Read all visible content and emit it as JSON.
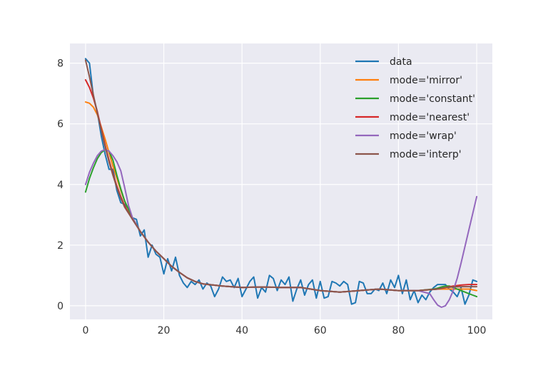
{
  "chart_data": {
    "type": "line",
    "title": "",
    "xlabel": "",
    "ylabel": "",
    "xlim": [
      -4,
      104
    ],
    "ylim": [
      -0.45,
      8.65
    ],
    "xticks": [
      0,
      20,
      40,
      60,
      80,
      100
    ],
    "yticks": [
      0,
      2,
      4,
      6,
      8
    ],
    "grid": true,
    "legend_position": "top-right",
    "series": [
      {
        "name": "data",
        "color": "#1f77b4",
        "x": [
          0,
          1,
          2,
          3,
          4,
          5,
          6,
          7,
          8,
          9,
          10,
          11,
          12,
          13,
          14,
          15,
          16,
          17,
          18,
          19,
          20,
          21,
          22,
          23,
          24,
          25,
          26,
          27,
          28,
          29,
          30,
          31,
          32,
          33,
          34,
          35,
          36,
          37,
          38,
          39,
          40,
          41,
          42,
          43,
          44,
          45,
          46,
          47,
          48,
          49,
          50,
          51,
          52,
          53,
          54,
          55,
          56,
          57,
          58,
          59,
          60,
          61,
          62,
          63,
          64,
          65,
          66,
          67,
          68,
          69,
          70,
          71,
          72,
          73,
          74,
          75,
          76,
          77,
          78,
          79,
          80,
          81,
          82,
          83,
          84,
          85,
          86,
          87,
          88,
          89,
          90,
          91,
          92,
          93,
          94,
          95,
          96,
          97,
          98,
          99,
          100
        ],
        "y": [
          8.15,
          8.0,
          6.9,
          6.4,
          5.6,
          5.0,
          4.5,
          4.5,
          3.8,
          3.4,
          3.35,
          3.2,
          2.9,
          2.85,
          2.3,
          2.5,
          1.6,
          2.0,
          1.7,
          1.6,
          1.05,
          1.55,
          1.15,
          1.6,
          1.0,
          0.75,
          0.6,
          0.8,
          0.7,
          0.85,
          0.55,
          0.75,
          0.65,
          0.3,
          0.55,
          0.95,
          0.8,
          0.85,
          0.6,
          0.9,
          0.3,
          0.55,
          0.8,
          0.95,
          0.25,
          0.6,
          0.45,
          1.0,
          0.9,
          0.5,
          0.85,
          0.7,
          0.95,
          0.15,
          0.55,
          0.85,
          0.35,
          0.7,
          0.85,
          0.25,
          0.8,
          0.25,
          0.3,
          0.8,
          0.75,
          0.65,
          0.8,
          0.7,
          0.05,
          0.1,
          0.8,
          0.75,
          0.4,
          0.4,
          0.55,
          0.5,
          0.75,
          0.4,
          0.85,
          0.6,
          1.0,
          0.4,
          0.85,
          0.2,
          0.5,
          0.1,
          0.35,
          0.2,
          0.45,
          0.6,
          0.7,
          0.7,
          0.7,
          0.55,
          0.45,
          0.3,
          0.6,
          0.05,
          0.35,
          0.85,
          0.8
        ]
      },
      {
        "name": "mode='mirror'",
        "color": "#ff7f0e",
        "x": [
          0,
          1,
          2,
          3,
          4,
          5,
          6,
          7,
          8,
          9,
          10,
          12,
          14,
          16,
          18,
          20,
          22,
          24,
          26,
          28,
          30,
          35,
          40,
          45,
          50,
          55,
          60,
          65,
          70,
          75,
          80,
          85,
          90,
          92,
          94,
          96,
          98,
          100
        ],
        "y": [
          6.72,
          6.68,
          6.55,
          6.3,
          5.9,
          5.5,
          5.05,
          4.6,
          4.2,
          3.8,
          3.45,
          2.9,
          2.45,
          2.1,
          1.8,
          1.55,
          1.3,
          1.1,
          0.92,
          0.8,
          0.72,
          0.65,
          0.6,
          0.62,
          0.6,
          0.6,
          0.5,
          0.45,
          0.5,
          0.55,
          0.5,
          0.5,
          0.55,
          0.55,
          0.55,
          0.55,
          0.55,
          0.5
        ]
      },
      {
        "name": "mode='constant'",
        "color": "#2ca02c",
        "x": [
          0,
          1,
          2,
          3,
          4,
          5,
          6,
          7,
          8,
          9,
          10,
          12,
          14,
          16,
          18,
          20,
          22,
          24,
          26,
          28,
          30,
          35,
          40,
          45,
          50,
          55,
          60,
          65,
          70,
          75,
          80,
          85,
          89,
          90,
          91,
          92,
          93,
          94,
          95,
          96,
          97,
          98,
          99,
          100
        ],
        "y": [
          3.75,
          4.2,
          4.55,
          4.85,
          5.05,
          5.15,
          5.1,
          4.8,
          4.3,
          3.85,
          3.45,
          2.9,
          2.45,
          2.1,
          1.8,
          1.55,
          1.3,
          1.1,
          0.92,
          0.8,
          0.72,
          0.65,
          0.6,
          0.62,
          0.6,
          0.6,
          0.5,
          0.45,
          0.5,
          0.55,
          0.5,
          0.5,
          0.55,
          0.58,
          0.62,
          0.65,
          0.65,
          0.6,
          0.55,
          0.5,
          0.45,
          0.4,
          0.35,
          0.3
        ]
      },
      {
        "name": "mode='nearest'",
        "color": "#d62728",
        "x": [
          0,
          1,
          2,
          3,
          4,
          5,
          6,
          7,
          8,
          9,
          10,
          12,
          14,
          16,
          18,
          20,
          22,
          24,
          26,
          28,
          30,
          35,
          40,
          45,
          50,
          55,
          60,
          65,
          70,
          75,
          80,
          85,
          90,
          92,
          94,
          96,
          98,
          100
        ],
        "y": [
          7.45,
          7.2,
          6.85,
          6.4,
          5.85,
          5.3,
          4.8,
          4.35,
          3.95,
          3.6,
          3.3,
          2.85,
          2.45,
          2.1,
          1.8,
          1.55,
          1.3,
          1.1,
          0.92,
          0.8,
          0.72,
          0.65,
          0.6,
          0.62,
          0.6,
          0.6,
          0.5,
          0.45,
          0.5,
          0.55,
          0.5,
          0.5,
          0.55,
          0.6,
          0.65,
          0.68,
          0.7,
          0.7
        ]
      },
      {
        "name": "mode='wrap'",
        "color": "#9467bd",
        "x": [
          0,
          1,
          2,
          3,
          4,
          5,
          6,
          7,
          8,
          9,
          10,
          11,
          12,
          14,
          16,
          18,
          20,
          22,
          24,
          26,
          28,
          30,
          35,
          40,
          45,
          50,
          55,
          60,
          65,
          70,
          75,
          80,
          85,
          88,
          89,
          90,
          91,
          92,
          93,
          94,
          95,
          96,
          97,
          98,
          99,
          100
        ],
        "y": [
          4.0,
          4.4,
          4.7,
          4.95,
          5.1,
          5.15,
          5.1,
          4.95,
          4.75,
          4.45,
          3.9,
          3.3,
          2.9,
          2.45,
          2.1,
          1.8,
          1.55,
          1.3,
          1.1,
          0.92,
          0.8,
          0.72,
          0.65,
          0.6,
          0.62,
          0.6,
          0.6,
          0.5,
          0.45,
          0.5,
          0.55,
          0.5,
          0.5,
          0.4,
          0.2,
          0.02,
          -0.05,
          0.0,
          0.2,
          0.5,
          0.9,
          1.4,
          1.95,
          2.5,
          3.05,
          3.6
        ]
      },
      {
        "name": "mode='interp'",
        "color": "#8c564b",
        "x": [
          0,
          1,
          2,
          3,
          4,
          5,
          6,
          7,
          8,
          9,
          10,
          12,
          14,
          16,
          18,
          20,
          22,
          24,
          26,
          28,
          30,
          35,
          40,
          45,
          50,
          55,
          60,
          65,
          70,
          75,
          80,
          85,
          90,
          92,
          94,
          96,
          98,
          100
        ],
        "y": [
          8.1,
          7.55,
          6.95,
          6.35,
          5.8,
          5.25,
          4.75,
          4.3,
          3.9,
          3.55,
          3.25,
          2.85,
          2.45,
          2.1,
          1.8,
          1.55,
          1.3,
          1.1,
          0.92,
          0.8,
          0.72,
          0.65,
          0.6,
          0.62,
          0.6,
          0.6,
          0.5,
          0.45,
          0.5,
          0.55,
          0.5,
          0.5,
          0.55,
          0.6,
          0.62,
          0.63,
          0.63,
          0.63
        ]
      }
    ]
  }
}
